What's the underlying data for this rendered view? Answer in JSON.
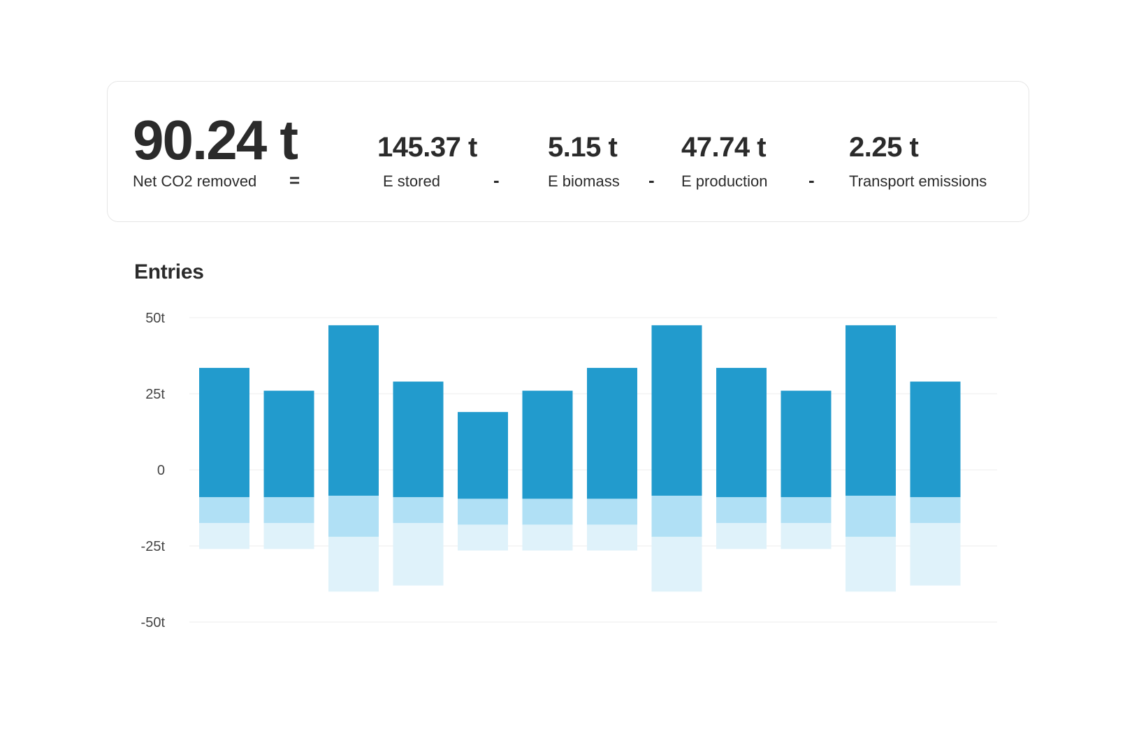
{
  "summary": {
    "net": {
      "value": "90.24 t",
      "label": "Net CO2 removed"
    },
    "operators": [
      "=",
      "-",
      "-",
      "-"
    ],
    "components": [
      {
        "value": "145.37 t",
        "label": "E stored"
      },
      {
        "value": "5.15 t",
        "label": "E biomass"
      },
      {
        "value": "47.74 t",
        "label": "E production"
      },
      {
        "value": "2.25 t",
        "label": "Transport emissions"
      }
    ]
  },
  "section_title": "Entries",
  "colors": {
    "positive": "#229bcd",
    "segment_1": "#3ab6e6",
    "segment_2": "#b0e0f5",
    "segment_3": "#dff2fa",
    "grid": "#ececec"
  },
  "chart_data": {
    "type": "bar",
    "stacked": true,
    "ylim": [
      -50,
      50
    ],
    "yticks": [
      50,
      25,
      0,
      -25,
      -50
    ],
    "ytick_labels": [
      "50t",
      "25t",
      "0",
      "-25t",
      "-50t"
    ],
    "grid": true,
    "bar_count": 12,
    "series": [
      {
        "values": [
          33.5,
          26,
          47.5,
          29,
          19,
          26,
          33.5,
          47.5,
          33.5,
          26,
          47.5,
          29
        ]
      },
      {
        "values": [
          -9,
          -9,
          -8.5,
          -9,
          -9.5,
          -9.5,
          -9.5,
          -8.5,
          -9,
          -9,
          -8.5,
          -9
        ]
      },
      {
        "values": [
          -8.5,
          -8.5,
          -13.5,
          -8.5,
          -8.5,
          -8.5,
          -8.5,
          -13.5,
          -8.5,
          -8.5,
          -13.5,
          -8.5
        ]
      },
      {
        "values": [
          -8.5,
          -8.5,
          -18,
          -20.5,
          -8.5,
          -8.5,
          -8.5,
          -18,
          -8.5,
          -8.5,
          -18,
          -20.5
        ]
      }
    ]
  }
}
